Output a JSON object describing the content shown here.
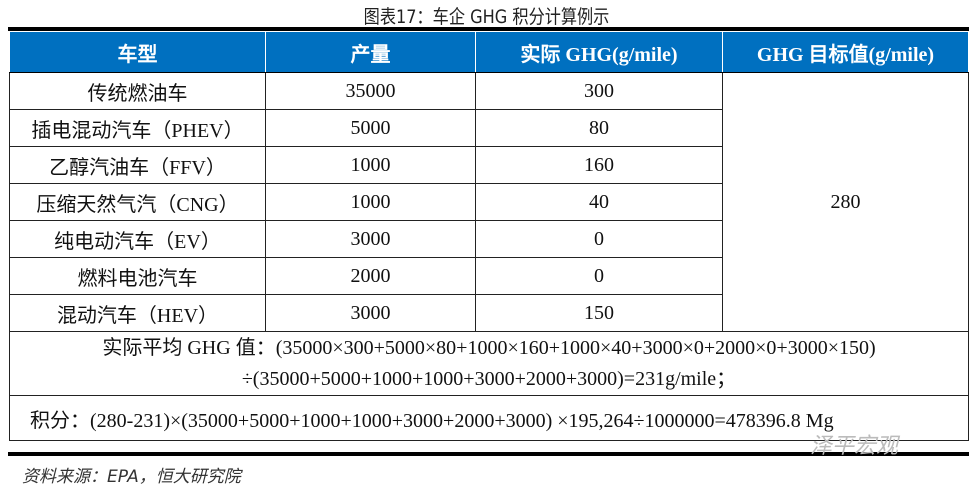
{
  "title": "图表17：车企 GHG 积分计算例示",
  "headers": [
    "车型",
    "产量",
    "实际 GHG(g/mile)",
    "GHG 目标值(g/mile)"
  ],
  "rows": [
    [
      "传统燃油车",
      "35000",
      "300"
    ],
    [
      "插电混动汽车（PHEV）",
      "5000",
      "80"
    ],
    [
      "乙醇汽油车（FFV）",
      "1000",
      "160"
    ],
    [
      "压缩天然气汽（CNG）",
      "1000",
      "40"
    ],
    [
      "纯电动汽车（EV）",
      "3000",
      "0"
    ],
    [
      "燃料电池汽车",
      "2000",
      "0"
    ],
    [
      "混动汽车（HEV）",
      "3000",
      "150"
    ]
  ],
  "target": "280",
  "avg_line1": "实际平均 GHG 值：(35000×300+5000×80+1000×160+1000×40+3000×0+2000×0+3000×150)",
  "avg_line2": "÷(35000+5000+1000+1000+3000+2000+3000)=231g/mile；",
  "credit": "积分：(280-231)×(35000+5000+1000+1000+3000+2000+3000) ×195,264÷1000000=478396.8 Mg",
  "source": "资料来源：EPA，恒大研究院",
  "watermark": "泽平宏观"
}
